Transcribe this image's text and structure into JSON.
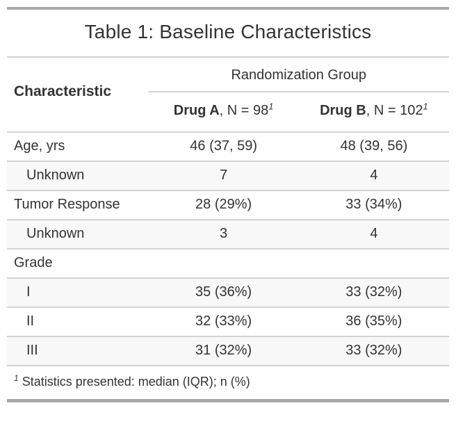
{
  "table": {
    "title": "Table 1: Baseline Characteristics",
    "header": {
      "characteristic_label": "Characteristic",
      "spanner": "Randomization Group",
      "columns": [
        {
          "name": "Drug A",
          "n_label": ", N = 98",
          "footnote_ref": "1"
        },
        {
          "name": "Drug B",
          "n_label": ", N = 102",
          "footnote_ref": "1"
        }
      ]
    },
    "rows": [
      {
        "label": "Age, yrs",
        "drug_a": "46 (37, 59)",
        "drug_b": "48 (39, 56)"
      },
      {
        "label": "Unknown",
        "drug_a": "7",
        "drug_b": "4"
      },
      {
        "label": "Tumor Response",
        "drug_a": "28 (29%)",
        "drug_b": "33 (34%)"
      },
      {
        "label": "Unknown",
        "drug_a": "3",
        "drug_b": "4"
      },
      {
        "label": "Grade",
        "drug_a": "",
        "drug_b": ""
      },
      {
        "label": "I",
        "drug_a": "35 (36%)",
        "drug_b": "33 (32%)"
      },
      {
        "label": "II",
        "drug_a": "32 (33%)",
        "drug_b": "36 (35%)"
      },
      {
        "label": "III",
        "drug_a": "31 (32%)",
        "drug_b": "33 (32%)"
      }
    ],
    "footnote": {
      "ref": "1",
      "text": "Statistics presented: median (IQR); n (%)"
    },
    "colors": {
      "thick_border": "#A8A8A8",
      "thin_border": "#D3D3D3",
      "text": "#333333",
      "stripe_background": "#F8F8F8",
      "background": "#FFFFFF"
    }
  }
}
